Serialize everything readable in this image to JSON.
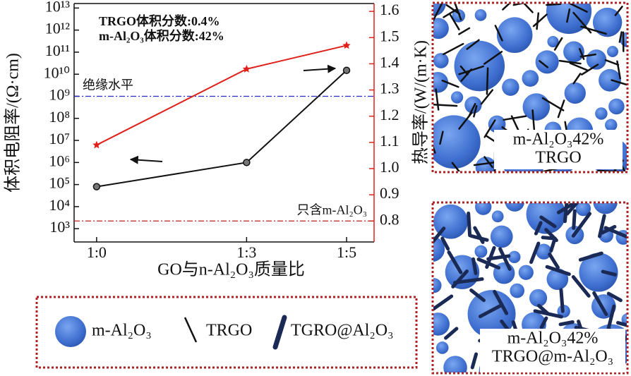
{
  "chart_data": {
    "type": "line",
    "annotations": [
      "TRGO体积分数:0.4%",
      "m-Al₂O₃体积分数:42%"
    ],
    "x_label": "GO与n-Al₂O₃质量比",
    "y_label": "体积电阻率/(Ω·cm)",
    "y2_label": "热导率/(W/(m·K)",
    "x": [
      0,
      3,
      5
    ],
    "xlim": [
      -0.45,
      5.55
    ],
    "xticks": [
      {
        "value": 0,
        "label": "1:0"
      },
      {
        "value": 3,
        "label": "1:3"
      },
      {
        "value": 5,
        "label": "1:5"
      }
    ],
    "ylog": true,
    "ylim": [
      250,
      16000000000000
    ],
    "yticks": [
      {
        "value": 1000,
        "label": "10³"
      },
      {
        "value": 10000,
        "label": "10⁴"
      },
      {
        "value": 100000,
        "label": "10⁵"
      },
      {
        "value": 1000000,
        "label": "10⁶"
      },
      {
        "value": 10000000,
        "label": "10⁷"
      },
      {
        "value": 100000000,
        "label": "10⁸"
      },
      {
        "value": 1000000000,
        "label": "10⁹"
      },
      {
        "value": 10000000000,
        "label": "10¹⁰"
      },
      {
        "value": 100000000000,
        "label": "10¹¹"
      },
      {
        "value": 1000000000000,
        "label": "10¹²"
      },
      {
        "value": 10000000000000,
        "label": "10¹³"
      }
    ],
    "y2lim": [
      0.72,
      1.63
    ],
    "y2ticks": [
      0.8,
      0.9,
      1.0,
      1.1,
      1.2,
      1.3,
      1.4,
      1.5,
      1.6
    ],
    "y2_color": "#e0201b",
    "series": [
      {
        "color": "#111111",
        "marker": "circle",
        "values": [
          80000,
          1000000,
          15000000000
        ]
      },
      {
        "color": "#e0201b",
        "marker": "star",
        "axis": "y2",
        "values": [
          1.09,
          1.38,
          1.47
        ]
      }
    ],
    "reference_lines": [
      {
        "label": "绝缘水平",
        "value": 1000000000,
        "color": "#2a2ad0"
      },
      {
        "label": "只含m-Al₂O₃",
        "value": 0.8,
        "axis": "y2",
        "color": "#c02020"
      }
    ]
  },
  "schematic": {
    "panels": [
      {
        "label_lines": [
          "m-Al₂O₃42%",
          "TRGO"
        ]
      },
      {
        "label_lines": [
          "m-Al₂O₃42%",
          "TRGO@m-Al₂O₃"
        ]
      }
    ],
    "legend": [
      "m-Al₂O₃",
      "TRGO",
      "TGRO@Al₂O₃"
    ]
  }
}
